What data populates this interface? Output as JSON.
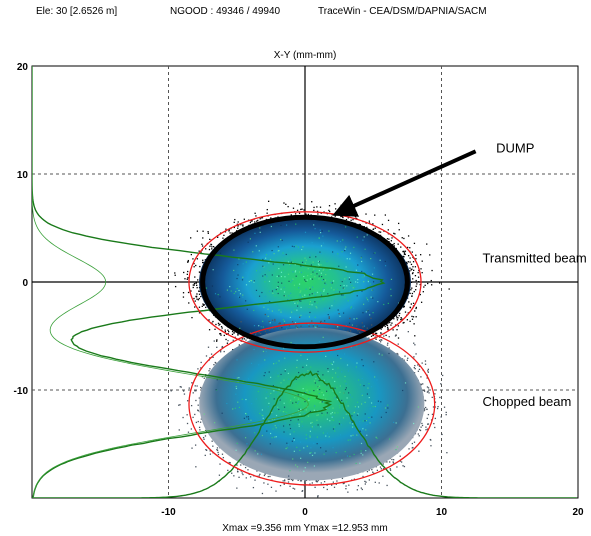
{
  "header": {
    "element": "Ele: 30 [2.6526 m]",
    "ngood": "NGOOD : 49346 / 49940",
    "tool": "TraceWin - CEA/DSM/DAPNIA/SACM"
  },
  "chart_data": {
    "type": "scatter",
    "title": "X-Y (mm-mm)",
    "xlabel": "Xmax =9.356 mm  Ymax =12.953 mm",
    "ylabel": "",
    "xlim": [
      -20,
      20
    ],
    "ylim": [
      -20,
      20
    ],
    "grid": true,
    "x_tick_labels": [
      "-10",
      "0",
      "10",
      "20"
    ],
    "y_tick_labels": [
      "20",
      "10",
      "0",
      "-10"
    ],
    "annotations": [
      {
        "text": "DUMP",
        "x": 14,
        "y": 12
      },
      {
        "text": "Transmitted beam",
        "x": 13,
        "y": 1.8
      },
      {
        "text": "Chopped beam",
        "x": 13,
        "y": -11.5
      }
    ],
    "beams": [
      {
        "name": "Transmitted beam",
        "center": [
          0,
          0
        ],
        "x_halfwidth": 8,
        "y_halfwidth": 6.3
      },
      {
        "name": "Chopped beam",
        "center": [
          0.5,
          -11.3
        ],
        "x_halfwidth": 8.5,
        "y_halfwidth": 7.3
      }
    ],
    "dump_ellipse": {
      "center": [
        0,
        0
      ],
      "x_halfwidth": 7.5,
      "y_halfwidth": 6
    },
    "arrow": {
      "from": [
        12.5,
        12.1
      ],
      "to": [
        2.8,
        6.6
      ]
    },
    "colors": {
      "profile": "#1a7a1a",
      "envelope": "#ee1c1c",
      "dump": "#000000",
      "core": "#2bd36a",
      "mid": "#1aa0d0",
      "outer": "#0b2d55"
    }
  }
}
